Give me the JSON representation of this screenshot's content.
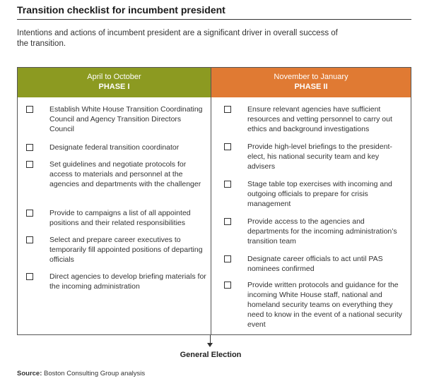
{
  "title": "Transition checklist for incumbent president",
  "intro": "Intentions and actions of incumbent president are a significant driver in overall success of the transition.",
  "phases": [
    {
      "dates": "April to October",
      "label": "PHASE I",
      "color": "#8c9a21",
      "items": [
        "Establish White House Transition Coordinating Council and Agency Transition Directors Council",
        "Designate federal transition coordinator",
        "Set guidelines and negotiate protocols for access to materials and personnel at the agencies and departments with the challenger",
        "Provide to campaigns a list of all appointed positions and their related responsibilities",
        "Select and prepare career executives to temporarily fill appointed positions of departing officials",
        "Direct agencies to develop briefing materials for the incoming administration"
      ]
    },
    {
      "dates": "November to January",
      "label": "PHASE II",
      "color": "#e07a33",
      "items": [
        "Ensure relevant agencies have sufficient resources and vetting personnel to carry out ethics and background investigations",
        "Provide high-level briefings to the president-elect, his national security team and key advisers",
        "Stage table top exercises with incoming and outgoing officials to prepare for crisis management",
        "Provide access to the agencies and departments for the incoming administration’s transition team",
        "Designate career officials to act until PAS nominees confirmed",
        "Provide written protocols and guidance for the incoming White House staff, national and homeland security teams on everything they need to know in the event of a national security event"
      ]
    }
  ],
  "milestone": "General Election",
  "source_label": "Source:",
  "source_text": "Boston Consulting Group analysis"
}
